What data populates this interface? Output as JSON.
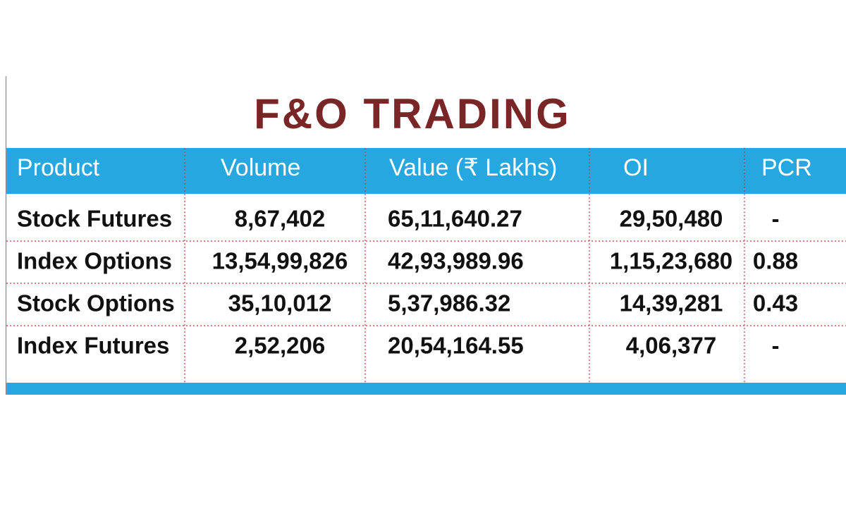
{
  "title": "F&O TRADING",
  "table": {
    "header": [
      "Product",
      "Volume",
      "Value (₹ Lakhs)",
      "OI",
      "PCR"
    ],
    "rows": [
      [
        "Stock Futures",
        "8,67,402",
        "65,11,640.27",
        "29,50,480",
        "-"
      ],
      [
        "Index Options",
        "13,54,99,826",
        "42,93,989.96",
        "1,15,23,680",
        "0.88"
      ],
      [
        "Stock Options",
        "35,10,012",
        "5,37,986.32",
        "14,39,281",
        "0.43"
      ],
      [
        "Index Futures",
        "2,52,206",
        "20,54,164.55",
        "4,06,377",
        "-"
      ]
    ]
  }
}
